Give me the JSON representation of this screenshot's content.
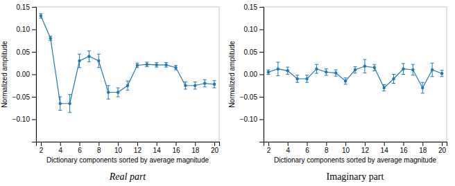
{
  "chart_data": [
    {
      "type": "line",
      "title": "Real part",
      "xlabel": "Dictionary components sorted by average magnitude",
      "ylabel": "Normalized amplitude",
      "x": [
        2,
        3,
        4,
        5,
        6,
        7,
        8,
        9,
        10,
        11,
        12,
        13,
        14,
        15,
        16,
        17,
        18,
        19,
        20
      ],
      "series": [
        {
          "values": [
            0.13,
            0.08,
            -0.065,
            -0.065,
            0.03,
            0.04,
            0.03,
            -0.04,
            -0.04,
            -0.025,
            0.02,
            0.022,
            0.021,
            0.021,
            0.015,
            -0.025,
            -0.025,
            -0.02,
            -0.022
          ],
          "errors": [
            0.005,
            0.005,
            0.015,
            0.02,
            0.015,
            0.012,
            0.015,
            0.015,
            0.01,
            0.01,
            0.005,
            0.005,
            0.005,
            0.005,
            0.005,
            0.008,
            0.008,
            0.008,
            0.008
          ],
          "marker": "o",
          "line_style": "solid"
        }
      ],
      "xlim": [
        1.5,
        20.5
      ],
      "xticks": [
        2,
        4,
        6,
        8,
        10,
        12,
        14,
        16,
        18,
        20
      ],
      "ylim": [
        -0.15,
        0.15
      ],
      "yticks": [
        {
          "value": -0.1,
          "label": "−0.10"
        },
        {
          "value": -0.05,
          "label": "−0.05"
        },
        {
          "value": 0,
          "label": "0.00"
        },
        {
          "value": 0.05,
          "label": "0.05"
        },
        {
          "value": 0.1,
          "label": "0.10"
        },
        {
          "value": 0.15,
          "label": "0.15"
        }
      ],
      "grid": false
    },
    {
      "type": "line",
      "title": "Imaginary part",
      "xlabel": "Dictionary components sorted by average magnitude",
      "ylabel": "Normalized amplitude",
      "x": [
        2,
        3,
        4,
        5,
        6,
        7,
        8,
        9,
        10,
        11,
        12,
        13,
        14,
        15,
        16,
        17,
        18,
        19,
        20
      ],
      "series": [
        {
          "values": [
            0.005,
            0.012,
            0.008,
            -0.01,
            -0.01,
            0.012,
            0.005,
            0.003,
            -0.015,
            0.01,
            0.018,
            0.015,
            -0.03,
            -0.01,
            0.012,
            0.01,
            -0.03,
            0.01,
            0.002
          ],
          "errors": [
            0.005,
            0.015,
            0.008,
            0.008,
            0.008,
            0.01,
            0.007,
            0.007,
            0.007,
            0.007,
            0.015,
            0.007,
            0.007,
            0.01,
            0.012,
            0.012,
            0.012,
            0.015,
            0.007
          ],
          "marker": "o",
          "line_style": "solid"
        }
      ],
      "xlim": [
        1.5,
        20.5
      ],
      "xticks": [
        2,
        4,
        6,
        8,
        10,
        12,
        14,
        16,
        18,
        20
      ],
      "ylim": [
        -0.15,
        0.15
      ],
      "yticks": [
        {
          "value": -0.1,
          "label": "−0.10"
        },
        {
          "value": -0.05,
          "label": "−0.05"
        },
        {
          "value": 0,
          "label": "0.00"
        },
        {
          "value": 0.05,
          "label": "0.05"
        },
        {
          "value": 0.1,
          "label": "0.10"
        },
        {
          "value": 0.15,
          "label": "0.15"
        }
      ],
      "grid": false
    }
  ]
}
